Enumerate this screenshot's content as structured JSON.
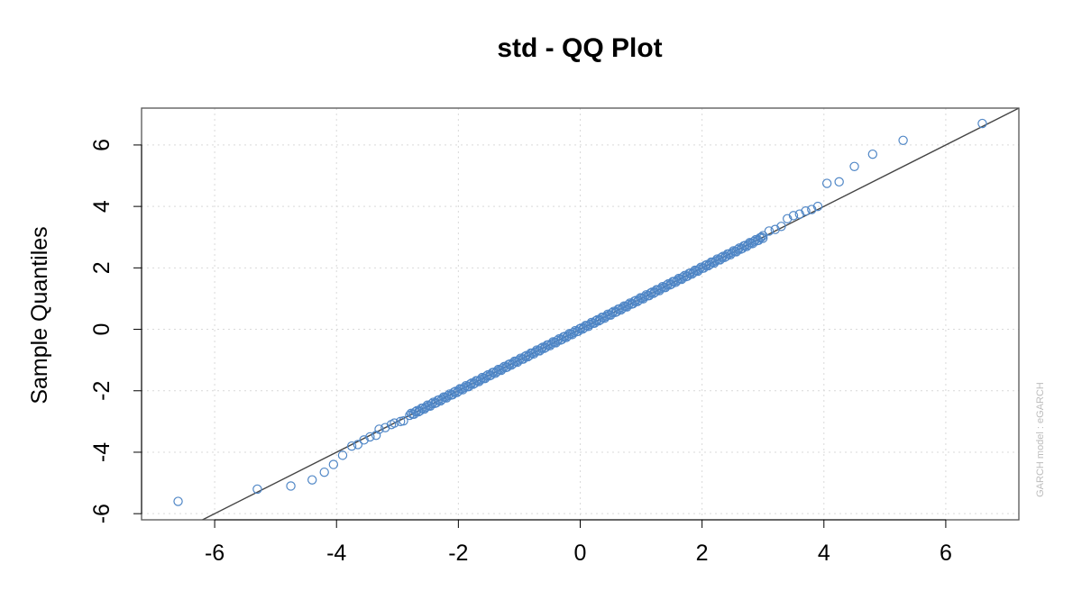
{
  "chart_data": {
    "type": "scatter",
    "title": "std - QQ Plot",
    "xlabel": "",
    "ylabel": "Sample Quantiles",
    "side_note": "GARCH model : eGARCH",
    "xlim": [
      -7.2,
      7.2
    ],
    "ylim": [
      -6.2,
      7.2
    ],
    "x_ticks": [
      -6,
      -4,
      -2,
      0,
      2,
      4,
      6
    ],
    "y_ticks": [
      -6,
      -4,
      -2,
      0,
      2,
      4,
      6
    ],
    "x_tick_labels": [
      "-6",
      "-4",
      "-2",
      "0",
      "2",
      "4",
      "6"
    ],
    "y_tick_labels": [
      "-6",
      "-4",
      "-2",
      "0",
      "2",
      "4",
      "6"
    ],
    "grid": true,
    "reference_line": {
      "slope": 1,
      "intercept": 0
    },
    "colors": {
      "points": "#4f86c6",
      "line": "#444444",
      "grid": "#d9d9d9",
      "frame": "#555555",
      "note": "#bdbdbd"
    },
    "dense_band": {
      "x_from": -2.8,
      "x_to": 3.0,
      "n": 240
    },
    "points": [
      [
        -6.6,
        -5.6
      ],
      [
        -5.3,
        -5.2
      ],
      [
        -4.75,
        -5.1
      ],
      [
        -4.4,
        -4.9
      ],
      [
        -4.2,
        -4.65
      ],
      [
        -4.05,
        -4.4
      ],
      [
        -3.9,
        -4.1
      ],
      [
        -3.75,
        -3.8
      ],
      [
        -3.65,
        -3.75
      ],
      [
        -3.55,
        -3.6
      ],
      [
        -3.45,
        -3.5
      ],
      [
        -3.35,
        -3.45
      ],
      [
        -3.3,
        -3.25
      ],
      [
        -3.2,
        -3.2
      ],
      [
        -3.1,
        -3.1
      ],
      [
        -3.05,
        -3.05
      ],
      [
        -2.95,
        -3.0
      ],
      [
        -2.9,
        -2.98
      ],
      [
        3.0,
        3.05
      ],
      [
        3.1,
        3.2
      ],
      [
        3.2,
        3.25
      ],
      [
        3.3,
        3.35
      ],
      [
        3.4,
        3.6
      ],
      [
        3.5,
        3.7
      ],
      [
        3.6,
        3.75
      ],
      [
        3.7,
        3.85
      ],
      [
        3.8,
        3.9
      ],
      [
        3.9,
        4.0
      ],
      [
        4.05,
        4.75
      ],
      [
        4.25,
        4.8
      ],
      [
        4.5,
        5.3
      ],
      [
        4.8,
        5.7
      ],
      [
        5.3,
        6.15
      ],
      [
        6.6,
        6.7
      ]
    ]
  }
}
